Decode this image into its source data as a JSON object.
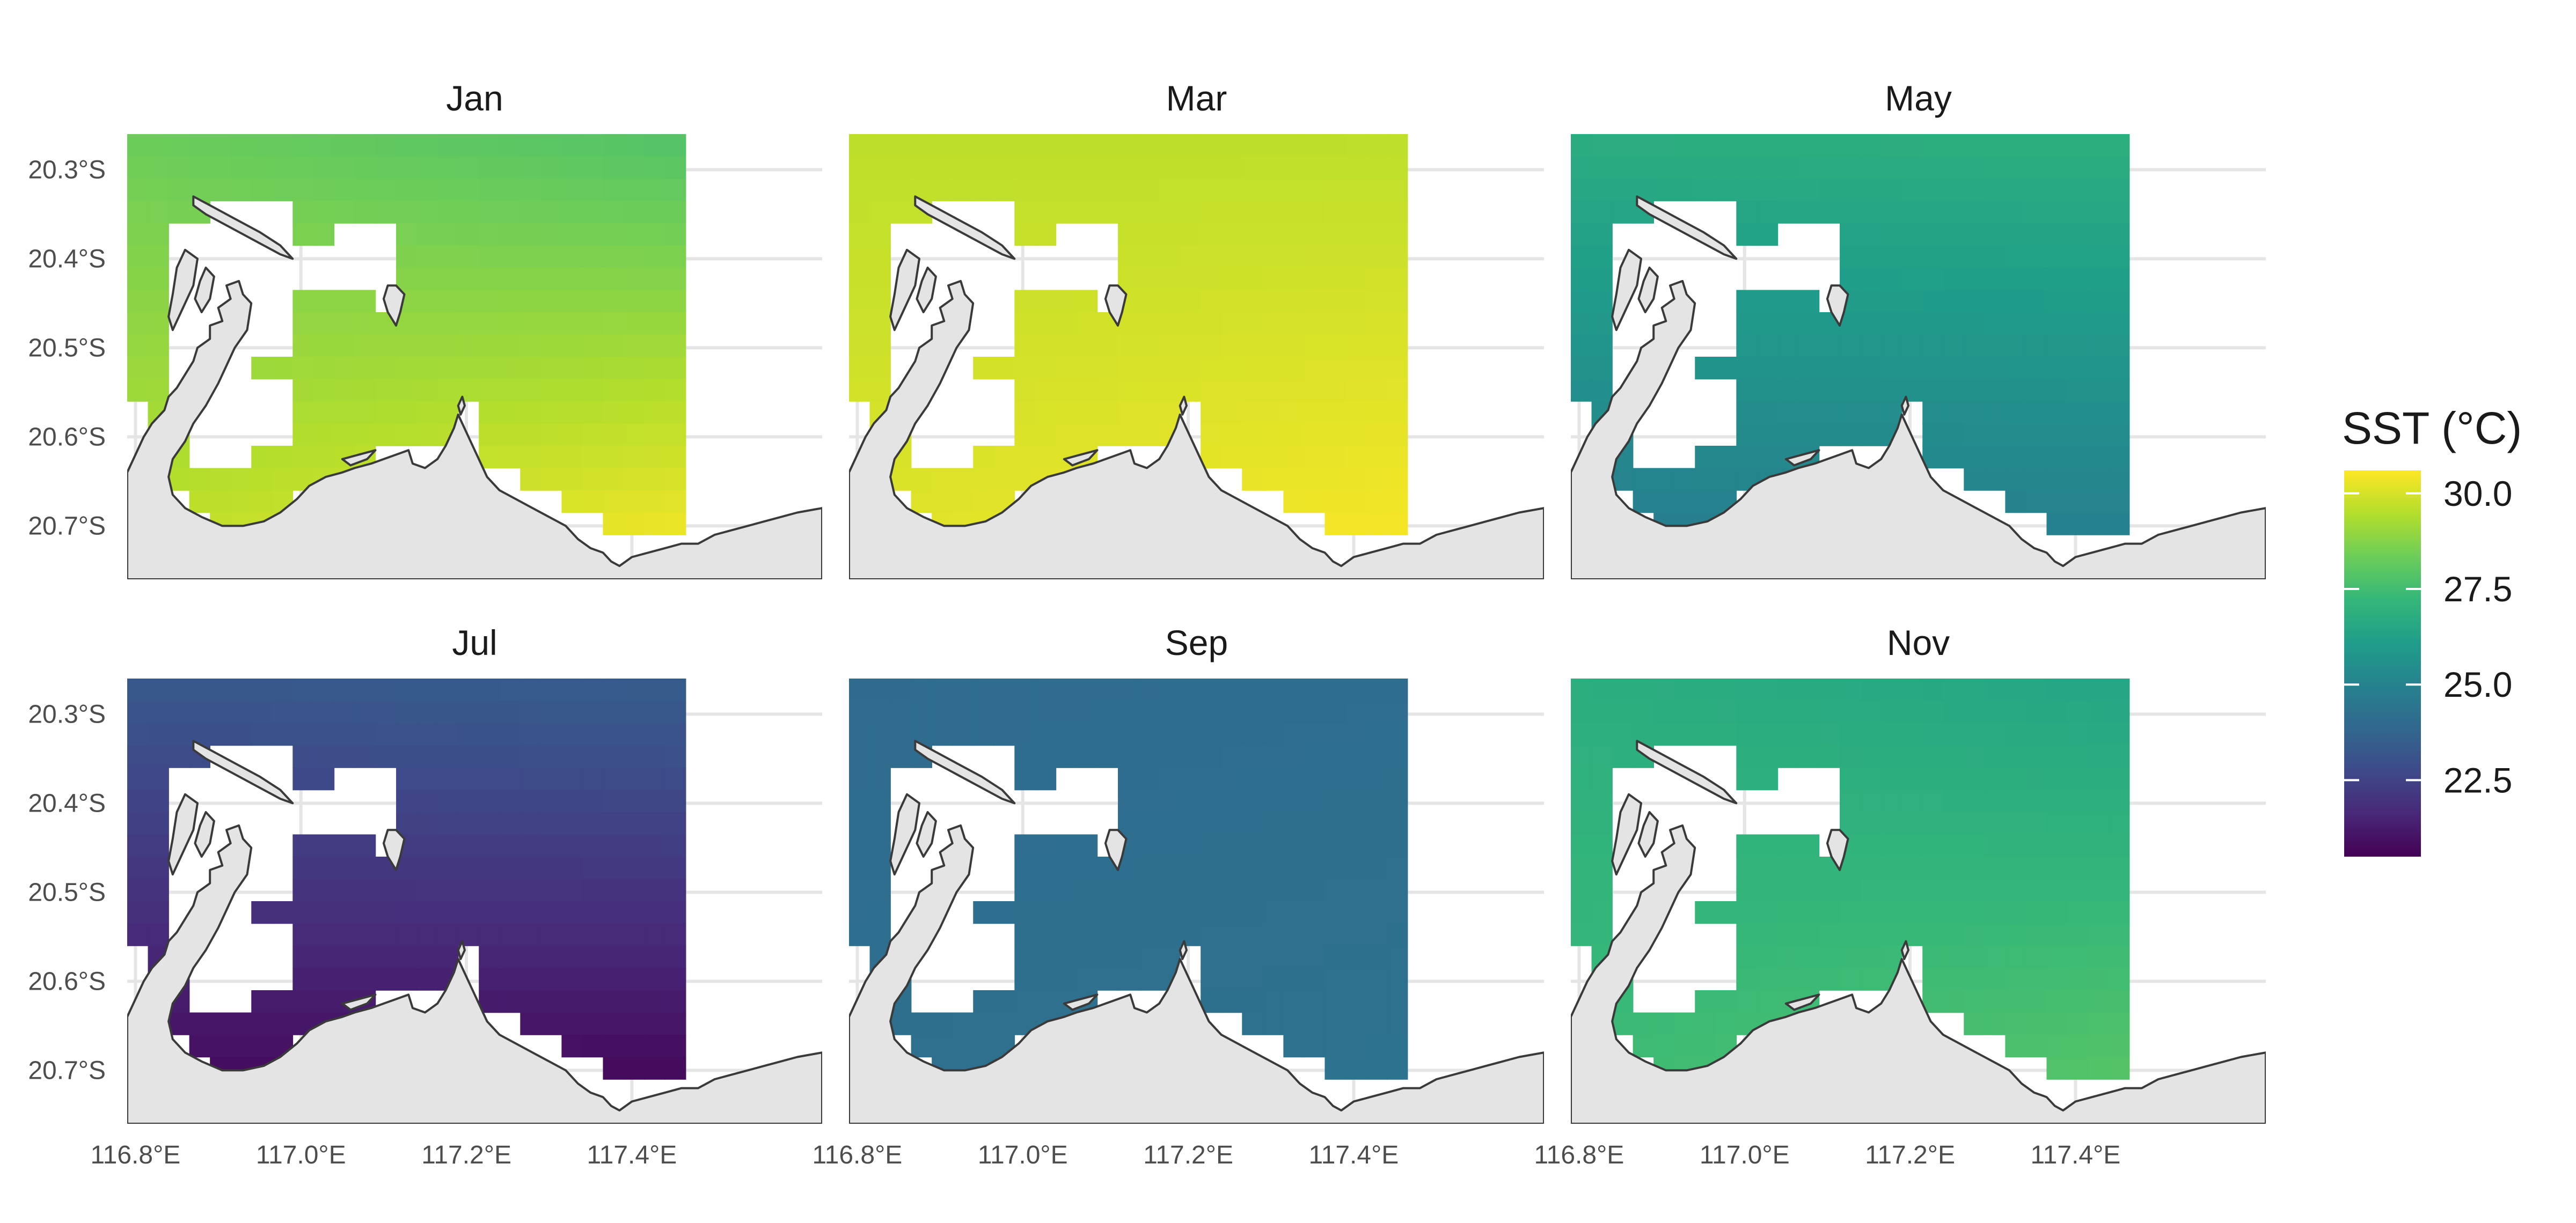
{
  "legend": {
    "title": "SST (°C)",
    "min": 20.5,
    "max": 30.6,
    "ticks": [
      {
        "value": 30.0,
        "label": "30.0"
      },
      {
        "value": 27.5,
        "label": "27.5"
      },
      {
        "value": 25.0,
        "label": "25.0"
      },
      {
        "value": 22.5,
        "label": "22.5"
      }
    ],
    "colors": [
      "#440154",
      "#482878",
      "#3e4a89",
      "#31688e",
      "#26828e",
      "#1f9e89",
      "#35b779",
      "#6dcd59",
      "#b4de2c",
      "#fde725"
    ]
  },
  "axes": {
    "x_ticks": [
      {
        "value": 116.8,
        "label": "116.8°E"
      },
      {
        "value": 117.0,
        "label": "117.0°E"
      },
      {
        "value": 117.2,
        "label": "117.2°E"
      },
      {
        "value": 117.4,
        "label": "117.4°E"
      }
    ],
    "y_ticks": [
      {
        "value": -20.3,
        "label": "20.3°S"
      },
      {
        "value": -20.4,
        "label": "20.4°S"
      },
      {
        "value": -20.5,
        "label": "20.5°S"
      },
      {
        "value": -20.6,
        "label": "20.6°S"
      },
      {
        "value": -20.7,
        "label": "20.7°S"
      }
    ],
    "xlim": [
      116.79,
      117.63
    ],
    "ylim": [
      -20.76,
      -20.26
    ]
  },
  "panels": [
    {
      "title": "Jan",
      "sst": {
        "northwest": 28.3,
        "northeast": 27.8,
        "southwest": 29.6,
        "southeast": 30.4
      }
    },
    {
      "title": "Mar",
      "sst": {
        "northwest": 29.6,
        "northeast": 29.6,
        "southwest": 30.1,
        "southeast": 30.5
      }
    },
    {
      "title": "May",
      "sst": {
        "northwest": 26.8,
        "northeast": 26.9,
        "southwest": 24.8,
        "southeast": 24.9
      }
    },
    {
      "title": "Jul",
      "sst": {
        "northwest": 23.3,
        "northeast": 23.5,
        "southwest": 20.8,
        "southeast": 20.7
      }
    },
    {
      "title": "Sep",
      "sst": {
        "northwest": 24.0,
        "northeast": 24.1,
        "southwest": 24.2,
        "southeast": 24.3
      }
    },
    {
      "title": "Nov",
      "sst": {
        "northwest": 26.8,
        "northeast": 26.4,
        "southwest": 27.4,
        "southeast": 27.9
      }
    }
  ]
}
